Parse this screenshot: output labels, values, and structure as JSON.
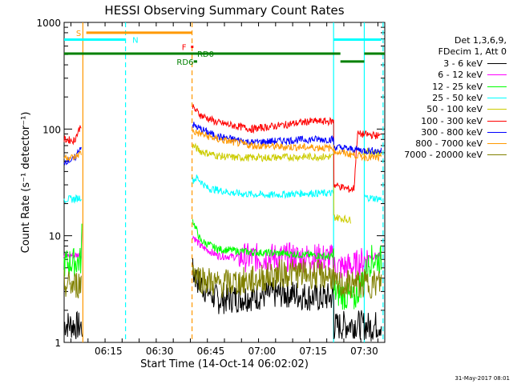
{
  "chart_data": {
    "type": "line",
    "title": "HESSI Observing Summary Count Rates",
    "xlabel": "Start Time (14-Oct-14 06:02:02)",
    "ylabel": "Count Rate (s⁻¹ detector⁻¹)",
    "ylog": true,
    "ylim": [
      1,
      1000
    ],
    "xlim_minutes": [
      0,
      94
    ],
    "x_ticks": [
      {
        "label": "06:15",
        "t": 13
      },
      {
        "label": "06:30",
        "t": 28
      },
      {
        "label": "06:45",
        "t": 43
      },
      {
        "label": "07:00",
        "t": 58
      },
      {
        "label": "07:15",
        "t": 73
      },
      {
        "label": "07:30",
        "t": 88
      }
    ],
    "y_ticks": [
      {
        "label": "1",
        "v": 1
      },
      {
        "label": "10",
        "v": 10
      },
      {
        "label": "100",
        "v": 100
      },
      {
        "label": "1000",
        "v": 1000
      }
    ],
    "legend_placement": "right",
    "header_lines": [
      "Det 1,3,6,9,",
      "FDecim 1, Att 0"
    ],
    "series": [
      {
        "name": "3 - 6 keV",
        "color": "#000000",
        "points": [
          [
            0,
            1.5
          ],
          [
            5.3,
            1.4
          ],
          [
            5.4,
            null
          ],
          [
            37.6,
            null
          ],
          [
            37.7,
            4.5
          ],
          [
            40,
            3.5
          ],
          [
            45,
            2.5
          ],
          [
            55,
            2.7
          ],
          [
            65,
            2.9
          ],
          [
            75,
            2.6
          ],
          [
            79,
            2.7
          ],
          [
            79.1,
            1.4
          ],
          [
            85,
            1.5
          ],
          [
            90,
            1.4
          ],
          [
            93,
            1.5
          ]
        ]
      },
      {
        "name": "6 - 12 keV",
        "color": "#ff00ff",
        "points": [
          [
            0,
            6.5
          ],
          [
            5,
            6.6
          ],
          [
            5.2,
            12
          ],
          [
            5.4,
            null
          ],
          [
            37.6,
            null
          ],
          [
            37.7,
            10
          ],
          [
            40,
            8
          ],
          [
            45,
            6.5
          ],
          [
            55,
            6.2
          ],
          [
            65,
            6.3
          ],
          [
            75,
            6.2
          ],
          [
            79,
            6.1
          ],
          [
            79.1,
            5
          ],
          [
            85,
            5.2
          ],
          [
            90,
            6.5
          ],
          [
            93,
            6.4
          ]
        ]
      },
      {
        "name": "12 - 25 keV",
        "color": "#00ff00",
        "points": [
          [
            0,
            5.5
          ],
          [
            5,
            5.8
          ],
          [
            5.2,
            14
          ],
          [
            5.4,
            null
          ],
          [
            37.6,
            null
          ],
          [
            37.7,
            14
          ],
          [
            40,
            9
          ],
          [
            45,
            7.5
          ],
          [
            55,
            7
          ],
          [
            65,
            6.8
          ],
          [
            75,
            6.5
          ],
          [
            79,
            6.3
          ],
          [
            79.1,
            3
          ],
          [
            85,
            2.5
          ],
          [
            90,
            6
          ],
          [
            93,
            6
          ]
        ]
      },
      {
        "name": "25 - 50 keV",
        "color": "#00ffff",
        "points": [
          [
            0,
            22
          ],
          [
            3,
            22
          ],
          [
            5,
            23
          ],
          [
            5.4,
            null
          ],
          [
            37.6,
            null
          ],
          [
            37.7,
            33
          ],
          [
            39,
            35
          ],
          [
            42,
            28
          ],
          [
            50,
            25
          ],
          [
            60,
            24
          ],
          [
            70,
            25
          ],
          [
            79,
            25
          ],
          [
            79.1,
            null
          ],
          [
            88,
            null
          ],
          [
            88.1,
            23
          ],
          [
            93,
            22
          ]
        ]
      },
      {
        "name": "50 - 100 keV",
        "color": "#cccc00",
        "points": [
          [
            5.5,
            null
          ],
          [
            37.6,
            null
          ],
          [
            37.7,
            70
          ],
          [
            40,
            62
          ],
          [
            45,
            56
          ],
          [
            50,
            54
          ],
          [
            60,
            54
          ],
          [
            70,
            55
          ],
          [
            79,
            55
          ],
          [
            79.1,
            15
          ],
          [
            84,
            14
          ],
          [
            84.1,
            null
          ],
          [
            87,
            null
          ],
          [
            87.5,
            62
          ],
          [
            93,
            60
          ]
        ]
      },
      {
        "name": "100 - 300 keV",
        "color": "#ff0000",
        "points": [
          [
            0,
            80
          ],
          [
            3,
            78
          ],
          [
            5,
            110
          ],
          [
            5.4,
            null
          ],
          [
            37.6,
            null
          ],
          [
            37.7,
            160
          ],
          [
            40,
            135
          ],
          [
            45,
            115
          ],
          [
            55,
            100
          ],
          [
            65,
            110
          ],
          [
            72,
            118
          ],
          [
            79,
            118
          ],
          [
            79.1,
            30
          ],
          [
            84,
            27
          ],
          [
            85,
            28
          ],
          [
            86,
            90
          ],
          [
            90,
            88
          ],
          [
            93,
            86
          ]
        ]
      },
      {
        "name": "300 - 800 keV",
        "color": "#0000ff",
        "points": [
          [
            0,
            50
          ],
          [
            3,
            52
          ],
          [
            5,
            70
          ],
          [
            5.4,
            null
          ],
          [
            37.6,
            null
          ],
          [
            37.7,
            110
          ],
          [
            40,
            100
          ],
          [
            45,
            85
          ],
          [
            55,
            75
          ],
          [
            65,
            78
          ],
          [
            72,
            80
          ],
          [
            79,
            80
          ],
          [
            79.1,
            68
          ],
          [
            84,
            65
          ],
          [
            88,
            63
          ],
          [
            93,
            62
          ]
        ]
      },
      {
        "name": "800 - 7000 keV",
        "color": "#ff9900",
        "points": [
          [
            0,
            55
          ],
          [
            3,
            54
          ],
          [
            5,
            60
          ],
          [
            5.4,
            null
          ],
          [
            37.6,
            null
          ],
          [
            37.7,
            95
          ],
          [
            40,
            90
          ],
          [
            45,
            80
          ],
          [
            55,
            70
          ],
          [
            65,
            68
          ],
          [
            75,
            67
          ],
          [
            79,
            66
          ],
          [
            79.1,
            62
          ],
          [
            84,
            58
          ],
          [
            88,
            55
          ],
          [
            93,
            53
          ]
        ]
      },
      {
        "name": "7000 - 20000 keV",
        "color": "#808000",
        "points": [
          [
            0,
            3.5
          ],
          [
            3,
            3.4
          ],
          [
            5,
            3.6
          ],
          [
            5.4,
            null
          ],
          [
            37.6,
            null
          ],
          [
            37.7,
            5
          ],
          [
            40,
            4
          ],
          [
            45,
            3.5
          ],
          [
            55,
            3.8
          ],
          [
            65,
            4.5
          ],
          [
            75,
            4.3
          ],
          [
            79,
            4.2
          ],
          [
            79.1,
            3.4
          ],
          [
            85,
            3.5
          ],
          [
            93,
            3.6
          ]
        ]
      }
    ],
    "annotations": [
      {
        "text": "S",
        "color": "#ff9900",
        "t": 3.5,
        "level": 800
      },
      {
        "text": "N",
        "color": "#00ffff",
        "t": 20,
        "level": 690
      },
      {
        "text": "F",
        "color": "#ff0000",
        "t": 34.5,
        "level": 590
      },
      {
        "text": "RD0",
        "color": "#008000",
        "t": 39,
        "level": 510
      },
      {
        "text": "RD6",
        "color": "#008000",
        "t": 33,
        "level": 430
      }
    ],
    "bars": [
      {
        "color": "#ff9900",
        "level": 800,
        "from": 6.5,
        "to": 37.5
      },
      {
        "color": "#00ffff",
        "level": 690,
        "from": 0,
        "to": 18
      },
      {
        "color": "#00ffff",
        "level": 690,
        "from": 79,
        "to": 93
      },
      {
        "color": "#ff0000",
        "level": 590,
        "from": 37.2,
        "to": 37.9
      },
      {
        "color": "#008000",
        "level": 510,
        "from": 0,
        "to": 81
      },
      {
        "color": "#008000",
        "level": 510,
        "from": 88,
        "to": 94
      },
      {
        "color": "#008000",
        "level": 430,
        "from": 38,
        "to": 39
      },
      {
        "color": "#008000",
        "level": 430,
        "from": 81,
        "to": 88
      }
    ],
    "vlines": [
      {
        "t": 5.5,
        "color": "#ff9900",
        "dashed": false
      },
      {
        "t": 18,
        "color": "#00ffff",
        "dashed": true
      },
      {
        "t": 37.5,
        "color": "#ff9900",
        "dashed": true
      },
      {
        "t": 79,
        "color": "#00ffff",
        "dashed": false
      },
      {
        "t": 88,
        "color": "#00ffff",
        "dashed": false
      },
      {
        "t": 93.5,
        "color": "#00ffff",
        "dashed": true
      }
    ]
  },
  "footer_timestamp": "31-May-2017 08:01"
}
